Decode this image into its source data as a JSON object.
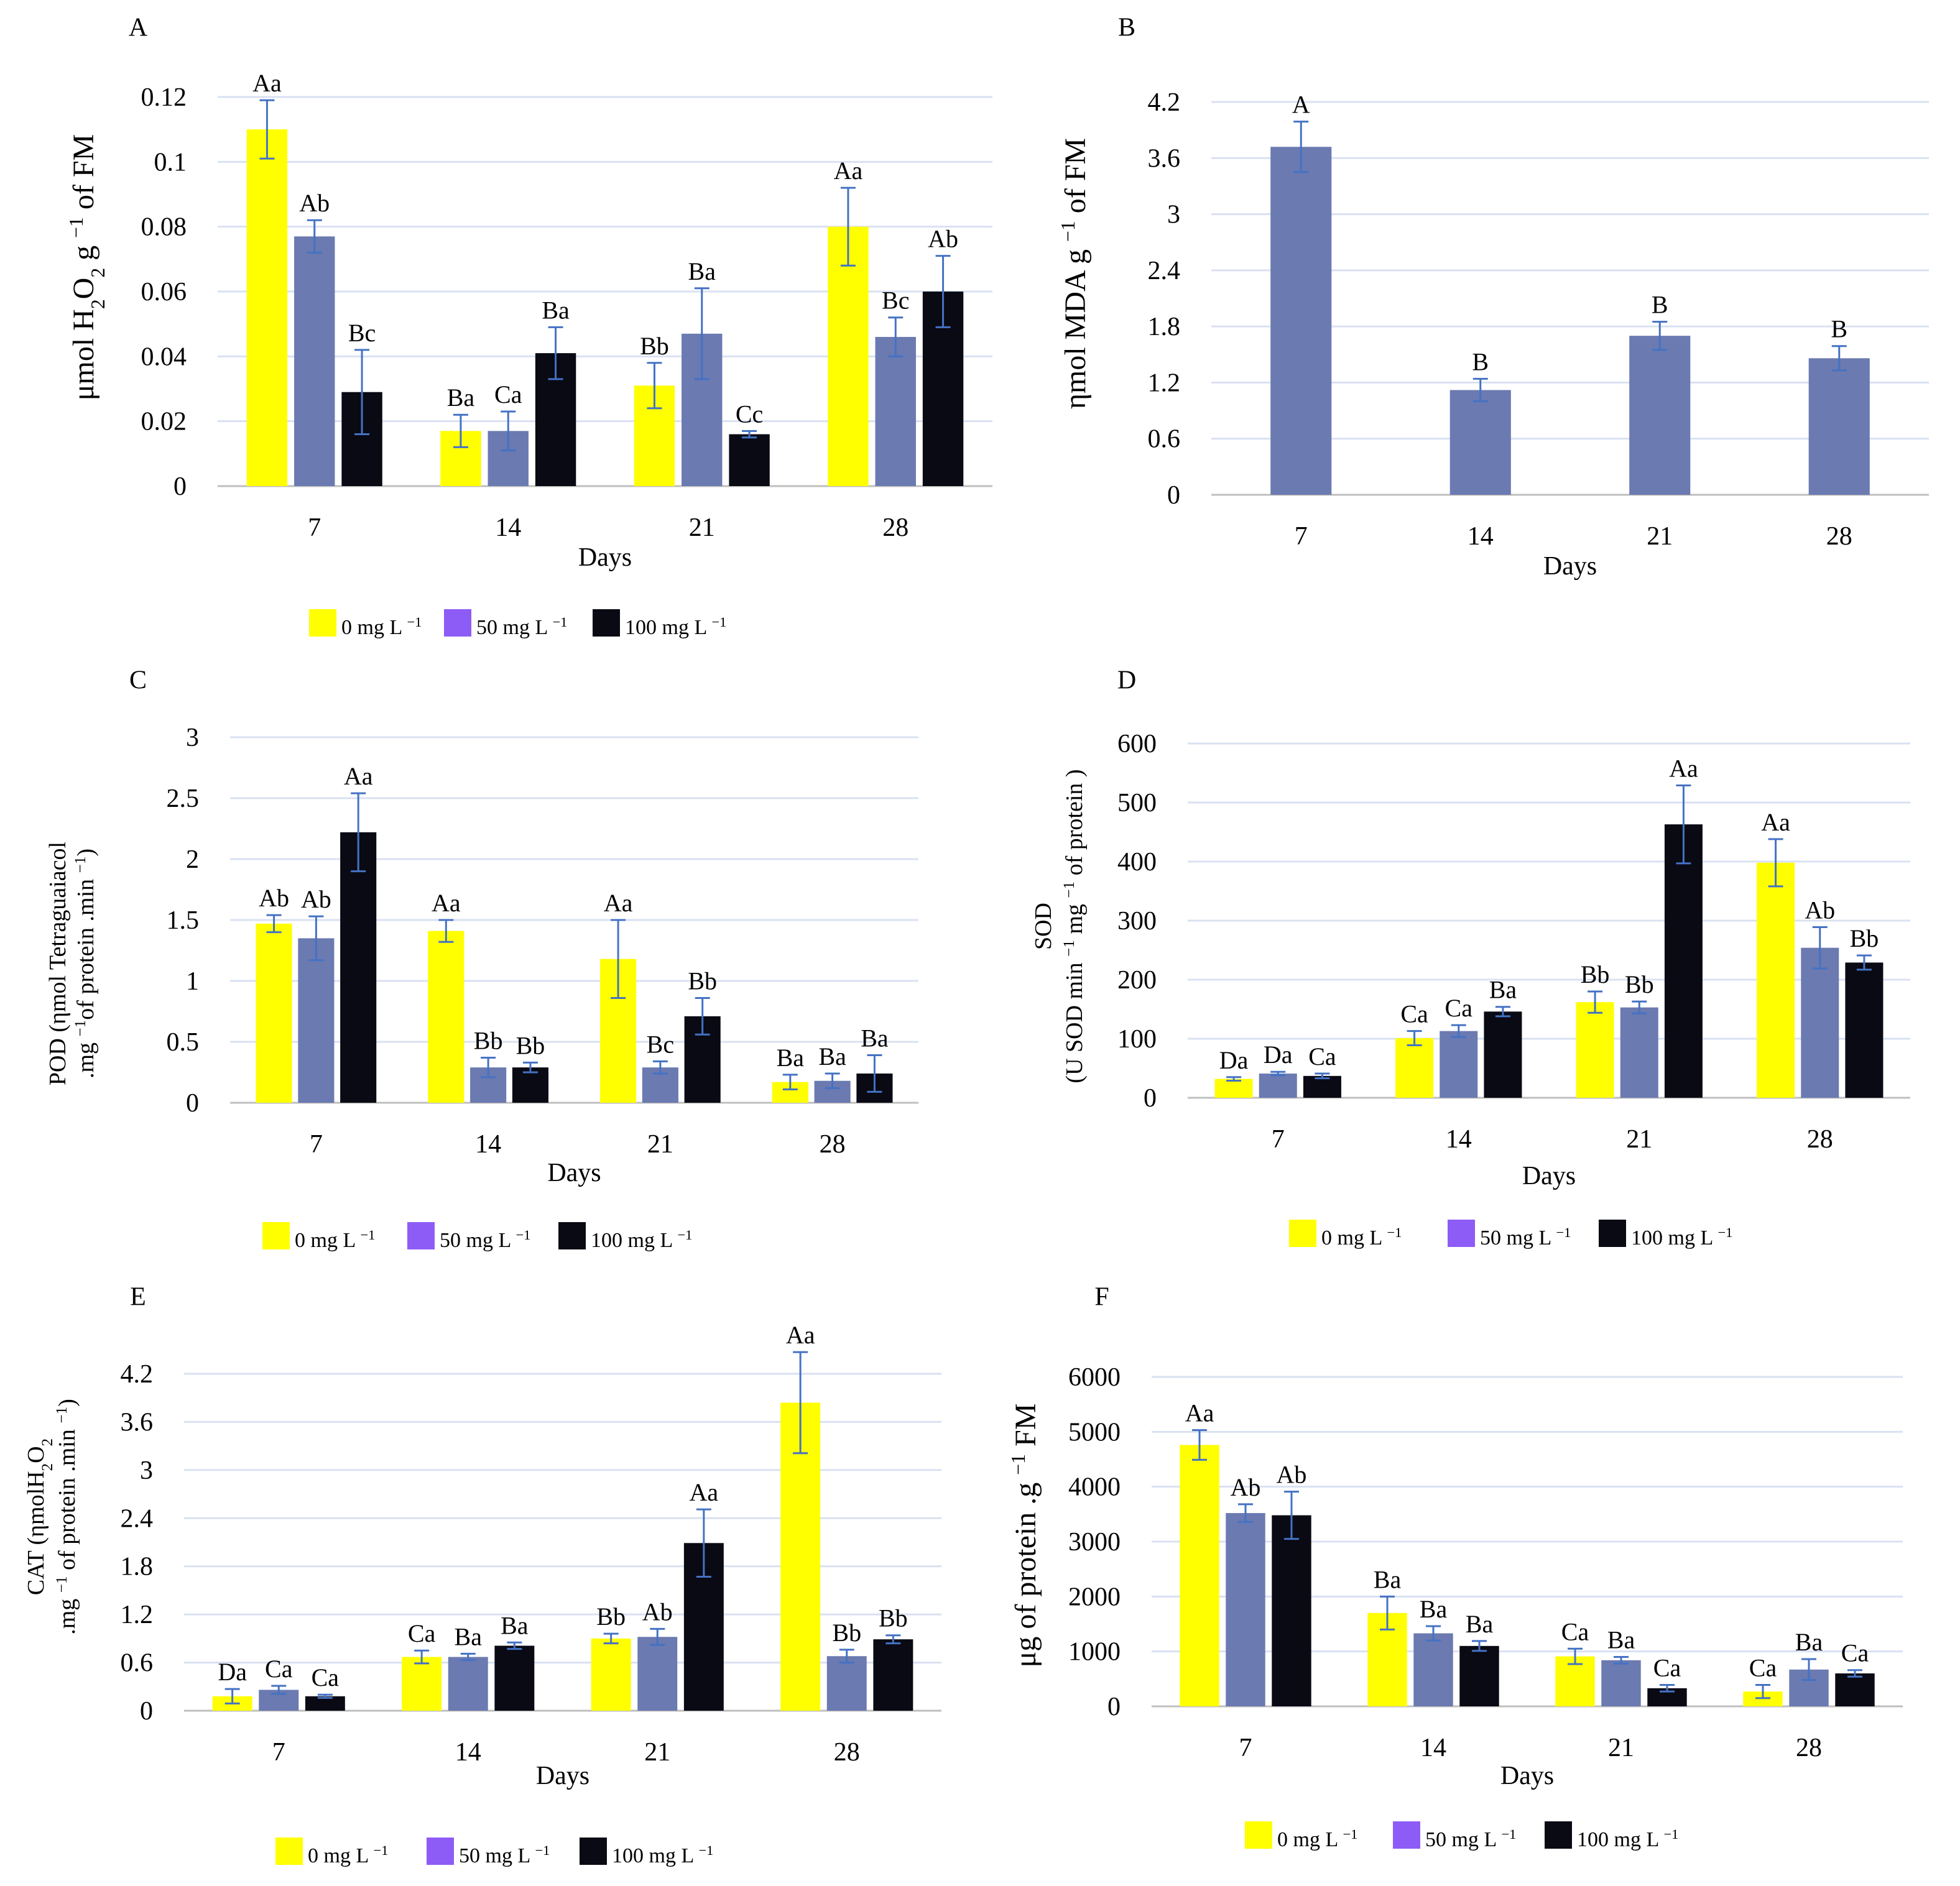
{
  "colors": {
    "s0": "#ffff00",
    "s1": "#6b7ab0",
    "s2": "#0a0a14",
    "s1_legend": "#8d5cf6",
    "s_single": "#6b7ab0",
    "grid": "#d9e1f2",
    "axis": "#bfbfbf",
    "err": "#4472c4"
  },
  "chart_data": [
    {
      "id": "A",
      "type": "bar",
      "panel_label": "A",
      "categories": [
        "7",
        "14",
        "21",
        "28"
      ],
      "xlabel": "Days",
      "ylabel_parts": [
        "μmol H",
        "2",
        "O",
        "2",
        " g ",
        "−1",
        " of FM"
      ],
      "ylim": [
        0,
        0.12
      ],
      "yticks": [
        "0",
        "0.02",
        "0.04",
        "0.06",
        "0.08",
        "0.1",
        "0.12"
      ],
      "series": [
        {
          "name": "0 mg L",
          "values": [
            0.11,
            0.017,
            0.031,
            0.08
          ],
          "err": [
            0.009,
            0.005,
            0.007,
            0.012
          ],
          "labels": [
            "Aa",
            "Ba",
            "Bb",
            "Aa"
          ]
        },
        {
          "name": "50 mg L",
          "values": [
            0.077,
            0.017,
            0.047,
            0.046
          ],
          "err": [
            0.005,
            0.006,
            0.014,
            0.006
          ],
          "labels": [
            "Ab",
            "Ca",
            "Ba",
            "Bc"
          ]
        },
        {
          "name": "100 mg L",
          "values": [
            0.029,
            0.041,
            0.016,
            0.06
          ],
          "err": [
            0.013,
            0.008,
            0.001,
            0.011
          ],
          "labels": [
            "Bc",
            "Ba",
            "Cc",
            "Ab"
          ]
        }
      ],
      "legend": [
        "0 mg L",
        "50 mg L",
        "100 mg L"
      ],
      "legend_sup": "−1"
    },
    {
      "id": "B",
      "type": "bar",
      "panel_label": "B",
      "categories": [
        "7",
        "14",
        "21",
        "28"
      ],
      "xlabel": "Days",
      "ylabel_parts": [
        "ηmol MDA g ",
        "−1",
        " of FM"
      ],
      "ylim": [
        0,
        4.2
      ],
      "yticks": [
        "0",
        "0.6",
        "1.2",
        "1.8",
        "2.4",
        "3",
        "3.6",
        "4.2"
      ],
      "series": [
        {
          "name": "MDA",
          "values": [
            3.72,
            1.12,
            1.7,
            1.46
          ],
          "err": [
            0.27,
            0.12,
            0.15,
            0.13
          ],
          "labels": [
            "A",
            "B",
            "B",
            "B"
          ]
        }
      ]
    },
    {
      "id": "C",
      "type": "bar",
      "panel_label": "C",
      "categories": [
        "7",
        "14",
        "21",
        "28"
      ],
      "xlabel": "Days",
      "ylabel_lines": [
        [
          "POD (ηmol Tetraguaiacol"
        ],
        [
          ".mg ",
          "−1",
          "of protein .min ",
          "−1",
          ")"
        ]
      ],
      "ylim": [
        0,
        3
      ],
      "yticks": [
        "0",
        "0.5",
        "1",
        "1.5",
        "2",
        "2.5",
        "3"
      ],
      "series": [
        {
          "name": "0 mg L",
          "values": [
            1.47,
            1.41,
            1.18,
            0.17
          ],
          "err": [
            0.07,
            0.09,
            0.32,
            0.06
          ],
          "labels": [
            "Ab",
            "Aa",
            "Aa",
            "Ba"
          ]
        },
        {
          "name": "50 mg L",
          "values": [
            1.35,
            0.29,
            0.29,
            0.18
          ],
          "err": [
            0.18,
            0.08,
            0.05,
            0.06
          ],
          "labels": [
            "Ab",
            "Bb",
            "Bc",
            "Ba"
          ]
        },
        {
          "name": "100 mg L",
          "values": [
            2.22,
            0.29,
            0.71,
            0.24
          ],
          "err": [
            0.32,
            0.04,
            0.15,
            0.15
          ],
          "labels": [
            "Aa",
            "Bb",
            "Bb",
            "Ba"
          ]
        }
      ],
      "legend": [
        "0 mg L",
        "50 mg L",
        "100 mg L"
      ],
      "legend_sup": "−1"
    },
    {
      "id": "D",
      "type": "bar",
      "panel_label": "D",
      "categories": [
        "7",
        "14",
        "21",
        "28"
      ],
      "xlabel": "Days",
      "ylabel_lines": [
        [
          "SOD"
        ],
        [
          "(U SOD min ",
          "−1",
          " mg ",
          "−1",
          " of protein  )"
        ]
      ],
      "ylim": [
        0,
        600
      ],
      "yticks": [
        "0",
        "100",
        "200",
        "300",
        "400",
        "500",
        "600"
      ],
      "series": [
        {
          "name": "0 mg L",
          "values": [
            32,
            101,
            162,
            398
          ],
          "err": [
            3,
            12,
            18,
            40
          ],
          "labels": [
            "Da",
            "Ca",
            "Bb",
            "Aa"
          ]
        },
        {
          "name": "50 mg L",
          "values": [
            41,
            113,
            153,
            254
          ],
          "err": [
            3,
            10,
            10,
            35
          ],
          "labels": [
            "Da",
            "Ca",
            "Bb",
            "Ab"
          ]
        },
        {
          "name": "100 mg L",
          "values": [
            37,
            146,
            463,
            229
          ],
          "err": [
            4,
            8,
            66,
            12
          ],
          "labels": [
            "Ca",
            "Ba",
            "Aa",
            "Bb"
          ]
        }
      ],
      "legend": [
        "0 mg L",
        "50 mg L",
        "100 mg L"
      ],
      "legend_sup": "−1"
    },
    {
      "id": "E",
      "type": "bar",
      "panel_label": "E",
      "categories": [
        "7",
        "14",
        "21",
        "28"
      ],
      "xlabel": "Days",
      "ylabel_lines": [
        [
          "CAT (ηmolH",
          "2",
          "O",
          "2"
        ],
        [
          ".mg ",
          "−1",
          " of protein .min ",
          "−1",
          ")"
        ]
      ],
      "ylim": [
        0,
        4.2
      ],
      "yticks": [
        "0",
        "0.6",
        "1.2",
        "1.8",
        "2.4",
        "3",
        "3.6",
        "4.2"
      ],
      "series": [
        {
          "name": "0 mg L",
          "values": [
            0.18,
            0.67,
            0.9,
            3.84
          ],
          "err": [
            0.09,
            0.08,
            0.06,
            0.63
          ],
          "labels": [
            "Da",
            "Ca",
            "Bb",
            "Aa"
          ]
        },
        {
          "name": "50 mg L",
          "values": [
            0.26,
            0.67,
            0.92,
            0.68
          ],
          "err": [
            0.05,
            0.04,
            0.1,
            0.08
          ],
          "labels": [
            "Ca",
            "Ba",
            "Ab",
            "Bb"
          ]
        },
        {
          "name": "100 mg L",
          "values": [
            0.18,
            0.81,
            2.09,
            0.89
          ],
          "err": [
            0.02,
            0.04,
            0.42,
            0.05
          ],
          "labels": [
            "Ca",
            "Ba",
            "Aa",
            "Bb"
          ]
        }
      ],
      "legend": [
        "0 mg L",
        "50 mg L",
        "100 mg L"
      ],
      "legend_sup": "−1"
    },
    {
      "id": "F",
      "type": "bar",
      "panel_label": "F",
      "categories": [
        "7",
        "14",
        "21",
        "28"
      ],
      "xlabel": "Days",
      "ylabel_parts": [
        "μg of protein .g ",
        "−1",
        " FM"
      ],
      "ylim": [
        0,
        6000
      ],
      "yticks": [
        "0",
        "1000",
        "2000",
        "3000",
        "4000",
        "5000",
        "6000"
      ],
      "series": [
        {
          "name": "0 mg L",
          "values": [
            4760,
            1700,
            910,
            270
          ],
          "err": [
            270,
            300,
            140,
            120
          ],
          "labels": [
            "Aa",
            "Ba",
            "Ca",
            "Ca"
          ]
        },
        {
          "name": "50 mg L",
          "values": [
            3520,
            1330,
            840,
            670
          ],
          "err": [
            160,
            130,
            60,
            190
          ],
          "labels": [
            "Ab",
            "Ba",
            "Ba",
            "Ba"
          ]
        },
        {
          "name": "100 mg L",
          "values": [
            3480,
            1100,
            330,
            600
          ],
          "err": [
            430,
            90,
            60,
            60
          ],
          "labels": [
            "Ab",
            "Ba",
            "Ca",
            "Ca"
          ]
        }
      ],
      "legend": [
        "0 mg L",
        "50 mg L",
        "100 mg L"
      ],
      "legend_sup": "−1"
    }
  ]
}
